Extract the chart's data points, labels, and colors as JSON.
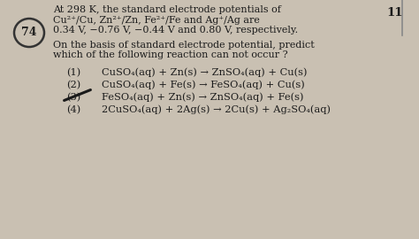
{
  "bg_color": "#c9c0b2",
  "page_num": "11",
  "q_num": "74",
  "title_line1": "At 298 K, the standard electrode potentials of",
  "title_line2": "Cu²⁺/Cu, Zn²⁺/Zn, Fe²⁺/Fe and Ag⁺/Ag are",
  "title_line3": "0.34 V, −0.76 V, −0.44 V and 0.80 V, respectively.",
  "question_line1": "On the basis of standard electrode potential, predict",
  "question_line2": "which of the following reaction can not occur ?",
  "opt1_num": "(1)",
  "opt1_text": "CuSO₄(aq) + Zn(s) → ZnSO₄(aq) + Cu(s)",
  "opt2_num": "(2)",
  "opt2_text": "CuSO₄(aq) + Fe(s) → FeSO₄(aq) + Cu(s)",
  "opt3_num": "(3)",
  "opt3_text": "FeSO₄(aq) + Zn(s) → ZnSO₄(aq) + Fe(s)",
  "opt4_num": "(4)",
  "opt4_text": "2CuSO₄(aq) + 2Ag(s) → 2Cu(s) + Ag₂SO₄(aq)",
  "text_color": "#1c1c1c",
  "circle_color": "#333333",
  "strike_color": "#1a1a1a",
  "right_line_color": "#888888"
}
